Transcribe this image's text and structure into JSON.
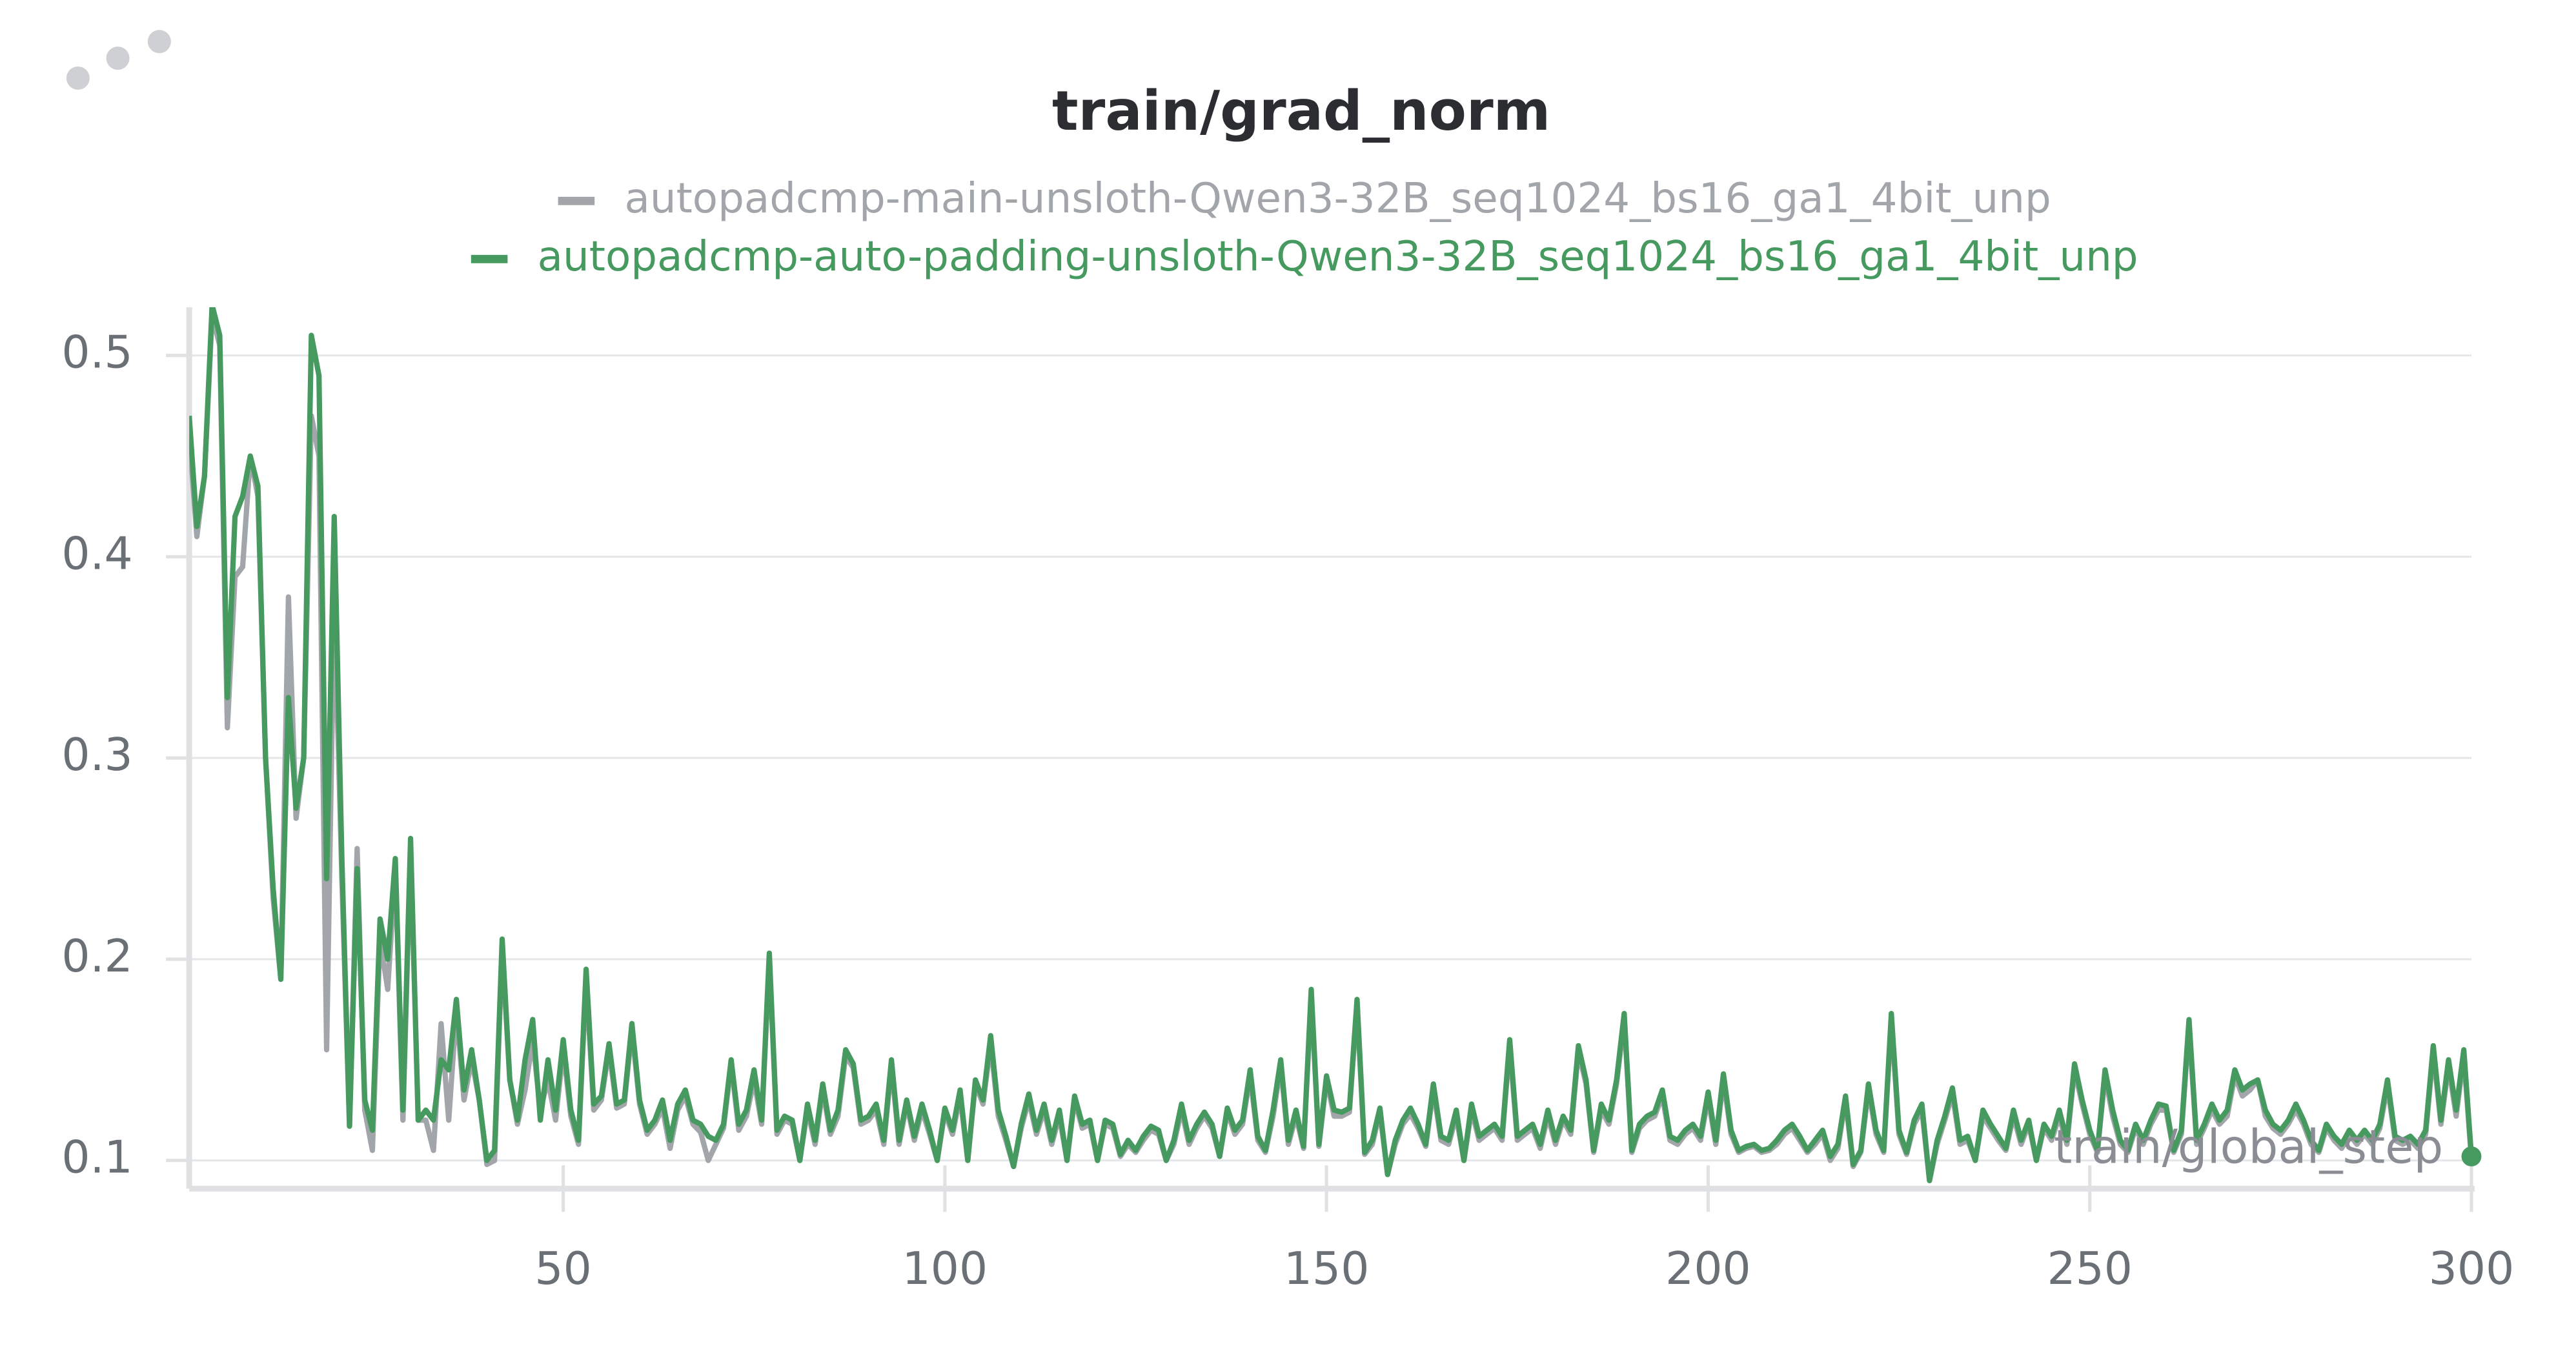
{
  "chart_data": {
    "type": "line",
    "title": "train/grad_norm",
    "x_label": "train/global_step",
    "x": [
      1,
      2,
      3,
      4,
      5,
      6,
      7,
      8,
      9,
      10,
      11,
      12,
      13,
      14,
      15,
      16,
      17,
      18,
      19,
      20,
      21,
      22,
      23,
      24,
      25,
      26,
      27,
      28,
      29,
      30,
      31,
      32,
      33,
      34,
      35,
      36,
      37,
      38,
      39,
      40,
      41,
      42,
      43,
      44,
      45,
      46,
      47,
      48,
      49,
      50,
      51,
      52,
      53,
      54,
      55,
      56,
      57,
      58,
      59,
      60,
      61,
      62,
      63,
      64,
      65,
      66,
      67,
      68,
      69,
      70,
      71,
      72,
      73,
      74,
      75,
      76,
      77,
      78,
      79,
      80,
      81,
      82,
      83,
      84,
      85,
      86,
      87,
      88,
      89,
      90,
      91,
      92,
      93,
      94,
      95,
      96,
      97,
      98,
      99,
      100,
      101,
      102,
      103,
      104,
      105,
      106,
      107,
      108,
      109,
      110,
      111,
      112,
      113,
      114,
      115,
      116,
      117,
      118,
      119,
      120,
      121,
      122,
      123,
      124,
      125,
      126,
      127,
      128,
      129,
      130,
      131,
      132,
      133,
      134,
      135,
      136,
      137,
      138,
      139,
      140,
      141,
      142,
      143,
      144,
      145,
      146,
      147,
      148,
      149,
      150,
      151,
      152,
      153,
      154,
      155,
      156,
      157,
      158,
      159,
      160,
      161,
      162,
      163,
      164,
      165,
      166,
      167,
      168,
      169,
      170,
      171,
      172,
      173,
      174,
      175,
      176,
      177,
      178,
      179,
      180,
      181,
      182,
      183,
      184,
      185,
      186,
      187,
      188,
      189,
      190,
      191,
      192,
      193,
      194,
      195,
      196,
      197,
      198,
      199,
      200,
      201,
      202,
      203,
      204,
      205,
      206,
      207,
      208,
      209,
      210,
      211,
      212,
      213,
      214,
      215,
      216,
      217,
      218,
      219,
      220,
      221,
      222,
      223,
      224,
      225,
      226,
      227,
      228,
      229,
      230,
      231,
      232,
      233,
      234,
      235,
      236,
      237,
      238,
      239,
      240,
      241,
      242,
      243,
      244,
      245,
      246,
      247,
      248,
      249,
      250,
      251,
      252,
      253,
      254,
      255,
      256,
      257,
      258,
      259,
      260,
      261,
      262,
      263,
      264,
      265,
      266,
      267,
      268,
      269,
      270,
      271,
      272,
      273,
      274,
      275,
      276,
      277,
      278,
      279,
      280,
      281,
      282,
      283,
      284,
      285,
      286,
      287,
      288,
      289,
      290,
      291,
      292,
      293,
      294,
      295,
      296,
      297,
      298,
      299,
      300
    ],
    "series": [
      {
        "name": "autopadcmp-main-unsloth-Qwen3-32B_seq1024_bs16_ga1_4bit_unp",
        "color": "#a2a5aa",
        "values": [
          0.46,
          0.41,
          0.44,
          0.52,
          0.505,
          0.315,
          0.39,
          0.395,
          0.45,
          0.43,
          0.3,
          0.23,
          0.19,
          0.38,
          0.27,
          0.3,
          0.47,
          0.45,
          0.155,
          0.38,
          0.24,
          0.117,
          0.255,
          0.125,
          0.105,
          0.21,
          0.185,
          0.245,
          0.12,
          0.255,
          0.12,
          0.12,
          0.105,
          0.168,
          0.12,
          0.175,
          0.13,
          0.15,
          0.13,
          0.098,
          0.1,
          0.205,
          0.14,
          0.118,
          0.135,
          0.16,
          0.125,
          0.14,
          0.12,
          0.155,
          0.122,
          0.108,
          0.19,
          0.125,
          0.13,
          0.155,
          0.126,
          0.128,
          0.165,
          0.128,
          0.113,
          0.118,
          0.126,
          0.106,
          0.125,
          0.132,
          0.118,
          0.114,
          0.1,
          0.108,
          0.116,
          0.148,
          0.115,
          0.122,
          0.14,
          0.118,
          0.2,
          0.113,
          0.12,
          0.118,
          0.1,
          0.125,
          0.108,
          0.135,
          0.113,
          0.122,
          0.152,
          0.146,
          0.118,
          0.12,
          0.125,
          0.108,
          0.147,
          0.108,
          0.128,
          0.11,
          0.125,
          0.113,
          0.1,
          0.124,
          0.113,
          0.132,
          0.1,
          0.138,
          0.128,
          0.158,
          0.122,
          0.11,
          0.097,
          0.116,
          0.13,
          0.113,
          0.125,
          0.108,
          0.122,
          0.1,
          0.13,
          0.116,
          0.118,
          0.1,
          0.118,
          0.116,
          0.102,
          0.108,
          0.104,
          0.11,
          0.115,
          0.113,
          0.1,
          0.108,
          0.125,
          0.108,
          0.116,
          0.122,
          0.116,
          0.102,
          0.124,
          0.113,
          0.118,
          0.142,
          0.11,
          0.104,
          0.122,
          0.147,
          0.108,
          0.122,
          0.106,
          0.182,
          0.107,
          0.14,
          0.122,
          0.122,
          0.124,
          0.177,
          0.103,
          0.108,
          0.124,
          0.093,
          0.108,
          0.118,
          0.123,
          0.116,
          0.107,
          0.135,
          0.11,
          0.108,
          0.122,
          0.1,
          0.125,
          0.11,
          0.113,
          0.116,
          0.11,
          0.157,
          0.11,
          0.113,
          0.116,
          0.106,
          0.122,
          0.108,
          0.12,
          0.113,
          0.154,
          0.138,
          0.104,
          0.125,
          0.118,
          0.138,
          0.17,
          0.104,
          0.116,
          0.12,
          0.122,
          0.132,
          0.11,
          0.108,
          0.113,
          0.116,
          0.11,
          0.131,
          0.108,
          0.14,
          0.113,
          0.104,
          0.106,
          0.107,
          0.104,
          0.105,
          0.108,
          0.113,
          0.116,
          0.11,
          0.104,
          0.108,
          0.113,
          0.1,
          0.106,
          0.13,
          0.097,
          0.104,
          0.135,
          0.113,
          0.104,
          0.17,
          0.113,
          0.103,
          0.118,
          0.125,
          0.09,
          0.108,
          0.12,
          0.133,
          0.108,
          0.11,
          0.1,
          0.122,
          0.116,
          0.11,
          0.105,
          0.122,
          0.108,
          0.118,
          0.1,
          0.116,
          0.11,
          0.122,
          0.108,
          0.145,
          0.128,
          0.113,
          0.104,
          0.142,
          0.122,
          0.108,
          0.104,
          0.116,
          0.108,
          0.118,
          0.125,
          0.125,
          0.104,
          0.113,
          0.167,
          0.108,
          0.116,
          0.125,
          0.118,
          0.122,
          0.142,
          0.132,
          0.135,
          0.14,
          0.122,
          0.116,
          0.113,
          0.118,
          0.125,
          0.118,
          0.108,
          0.104,
          0.116,
          0.11,
          0.106,
          0.113,
          0.108,
          0.113,
          0.108,
          0.116,
          0.137,
          0.11,
          0.108,
          0.11,
          0.106,
          0.113,
          0.154,
          0.118,
          0.147,
          0.122,
          0.152,
          0.1
        ]
      },
      {
        "name": "autopadcmp-auto-padding-unsloth-Qwen3-32B_seq1024_bs16_ga1_4bit_unp",
        "color": "#479a5f",
        "values": [
          0.47,
          0.415,
          0.44,
          0.525,
          0.51,
          0.33,
          0.42,
          0.43,
          0.45,
          0.435,
          0.3,
          0.235,
          0.19,
          0.33,
          0.275,
          0.3,
          0.51,
          0.49,
          0.24,
          0.42,
          0.25,
          0.117,
          0.245,
          0.13,
          0.115,
          0.22,
          0.2,
          0.25,
          0.125,
          0.26,
          0.12,
          0.125,
          0.12,
          0.15,
          0.145,
          0.18,
          0.135,
          0.155,
          0.13,
          0.1,
          0.105,
          0.21,
          0.14,
          0.12,
          0.15,
          0.17,
          0.12,
          0.15,
          0.125,
          0.16,
          0.125,
          0.11,
          0.195,
          0.128,
          0.132,
          0.158,
          0.128,
          0.13,
          0.168,
          0.13,
          0.115,
          0.12,
          0.13,
          0.11,
          0.128,
          0.135,
          0.12,
          0.118,
          0.112,
          0.11,
          0.118,
          0.15,
          0.118,
          0.125,
          0.145,
          0.12,
          0.203,
          0.115,
          0.122,
          0.12,
          0.1,
          0.128,
          0.11,
          0.138,
          0.115,
          0.125,
          0.155,
          0.148,
          0.12,
          0.122,
          0.128,
          0.11,
          0.15,
          0.11,
          0.13,
          0.112,
          0.128,
          0.115,
          0.1,
          0.126,
          0.115,
          0.135,
          0.1,
          0.14,
          0.13,
          0.162,
          0.125,
          0.112,
          0.097,
          0.118,
          0.133,
          0.115,
          0.128,
          0.11,
          0.125,
          0.1,
          0.132,
          0.118,
          0.12,
          0.1,
          0.12,
          0.118,
          0.103,
          0.11,
          0.105,
          0.112,
          0.117,
          0.115,
          0.1,
          0.11,
          0.128,
          0.11,
          0.118,
          0.124,
          0.118,
          0.102,
          0.126,
          0.115,
          0.12,
          0.145,
          0.112,
          0.105,
          0.125,
          0.15,
          0.11,
          0.125,
          0.107,
          0.185,
          0.108,
          0.142,
          0.125,
          0.124,
          0.126,
          0.18,
          0.104,
          0.11,
          0.126,
          0.093,
          0.11,
          0.12,
          0.126,
          0.118,
          0.108,
          0.138,
          0.112,
          0.11,
          0.125,
          0.1,
          0.128,
          0.112,
          0.115,
          0.118,
          0.112,
          0.16,
          0.112,
          0.115,
          0.118,
          0.108,
          0.125,
          0.11,
          0.122,
          0.115,
          0.157,
          0.14,
          0.105,
          0.128,
          0.12,
          0.14,
          0.173,
          0.105,
          0.118,
          0.122,
          0.124,
          0.135,
          0.112,
          0.11,
          0.115,
          0.118,
          0.112,
          0.134,
          0.11,
          0.143,
          0.115,
          0.105,
          0.107,
          0.108,
          0.105,
          0.106,
          0.11,
          0.115,
          0.118,
          0.112,
          0.105,
          0.11,
          0.115,
          0.102,
          0.108,
          0.132,
          0.098,
          0.105,
          0.138,
          0.115,
          0.105,
          0.173,
          0.115,
          0.104,
          0.12,
          0.128,
          0.09,
          0.11,
          0.122,
          0.136,
          0.11,
          0.112,
          0.1,
          0.125,
          0.118,
          0.112,
          0.106,
          0.125,
          0.11,
          0.12,
          0.1,
          0.118,
          0.112,
          0.125,
          0.11,
          0.148,
          0.13,
          0.115,
          0.105,
          0.145,
          0.125,
          0.11,
          0.105,
          0.118,
          0.11,
          0.12,
          0.128,
          0.127,
          0.105,
          0.115,
          0.17,
          0.11,
          0.118,
          0.128,
          0.12,
          0.125,
          0.145,
          0.135,
          0.138,
          0.14,
          0.125,
          0.118,
          0.115,
          0.12,
          0.128,
          0.12,
          0.11,
          0.105,
          0.118,
          0.112,
          0.108,
          0.115,
          0.11,
          0.115,
          0.11,
          0.118,
          0.14,
          0.112,
          0.11,
          0.112,
          0.108,
          0.115,
          0.157,
          0.12,
          0.15,
          0.125,
          0.155,
          0.102
        ]
      }
    ],
    "xlim": [
      1,
      300
    ],
    "ylim": [
      0.086,
      0.524
    ],
    "xticks": [
      50,
      100,
      150,
      200,
      250,
      300
    ],
    "yticks": [
      0.1,
      0.2,
      0.3,
      0.4,
      0.5
    ],
    "grid": true
  }
}
